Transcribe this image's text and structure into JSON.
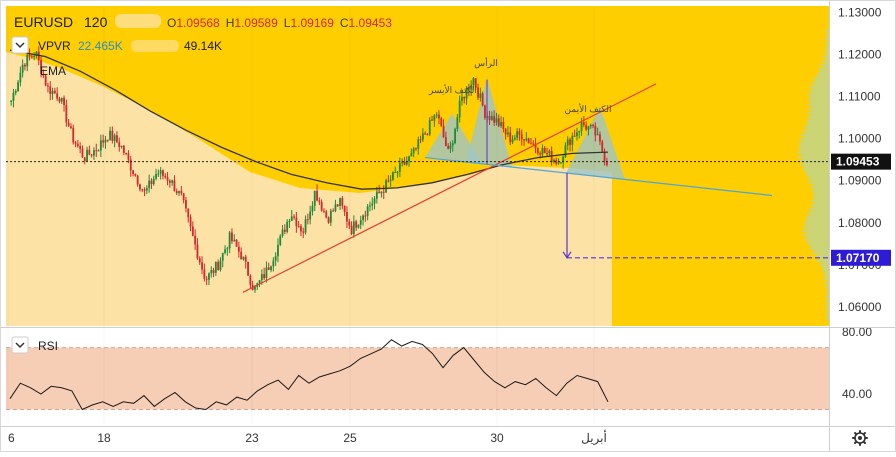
{
  "header": {
    "symbol": "EURUSD",
    "timeframe": "120",
    "ohlc": [
      {
        "label": "O",
        "value": "1.09568"
      },
      {
        "label": "H",
        "value": "1.09589"
      },
      {
        "label": "L",
        "value": "1.09169"
      },
      {
        "label": "C",
        "value": "1.09453"
      }
    ]
  },
  "indicators": {
    "vpvr_label": "VPVR",
    "vpvr_value_1": "22.465K",
    "vpvr_value_2": "49.14K",
    "ema_label": "EMA",
    "rsi_label": "RSI"
  },
  "annotations": {
    "left_shoulder": "الكتف الأيسر",
    "head": "الرأس",
    "right_shoulder": "الكتف الأيمن"
  },
  "price_axis": {
    "ticks": [
      "1.13000",
      "1.12000",
      "1.11000",
      "1.10000",
      "1.09000",
      "1.08000",
      "1.07000",
      "1.06000"
    ],
    "current_price_label": "1.09453",
    "target_price_label": "1.07170"
  },
  "rsi_axis": {
    "ticks": [
      "80.00",
      "40.00"
    ]
  },
  "time_axis": {
    "ticks": [
      "6",
      "18",
      "23",
      "25",
      "30",
      "أبريل"
    ]
  },
  "colors": {
    "up_candle": "#1f8a3a",
    "down_candle": "#d2282e",
    "chart_bg_upper": "#fece00",
    "chart_bg_lower": "#fde2a5",
    "ema_line": "#333333",
    "trendline": "#e83b2f",
    "neckline": "#4aa6d8",
    "target_arrow": "#5a32d8",
    "rsi_band": "#f6cdb5",
    "current_price_tag": "#111111",
    "target_price_tag": "#2d1bd6",
    "pattern_fill": "#9fc6c8",
    "volume_profile": "#b4d7ad"
  },
  "chart_data": [
    {
      "type": "candlestick",
      "title": "EURUSD",
      "timeframe": "120",
      "x_ticks": [
        "6",
        "18",
        "23",
        "25",
        "30",
        "أبريل"
      ],
      "ylim": [
        1.0555,
        1.1315
      ],
      "y_ticks": [
        1.13,
        1.12,
        1.11,
        1.1,
        1.09,
        1.08,
        1.07,
        1.06
      ],
      "series": [
        {
          "name": "EURUSD",
          "path": [
            1.109,
            1.118,
            1.1205,
            1.112,
            1.11,
            1.1005,
            1.0955,
            1.0975,
            1.101,
            1.0985,
            1.0925,
            1.087,
            1.092,
            1.0905,
            1.086,
            1.076,
            1.0665,
            1.07,
            1.0765,
            1.072,
            1.064,
            1.0685,
            1.075,
            1.0825,
            1.078,
            1.0875,
            1.081,
            1.085,
            1.0785,
            1.0825,
            1.086,
            1.0895,
            1.093,
            1.096,
            1.101,
            1.106,
            1.096,
            1.109,
            1.1145,
            1.106,
            1.104,
            1.1,
            1.101,
            1.0985,
            1.0965,
            1.0945,
            1.1,
            1.1035,
            1.1015,
            1.0945
          ]
        },
        {
          "name": "EMA",
          "path": [
            1.121,
            1.1195,
            1.116,
            1.1115,
            1.1065,
            1.102,
            1.098,
            1.0945,
            1.0915,
            1.0895,
            1.088,
            1.0883,
            1.0895,
            1.0915,
            1.0938,
            1.0955,
            1.0965,
            1.0968
          ]
        }
      ],
      "horizontal_lines": [
        {
          "label": "current",
          "value": 1.09453
        },
        {
          "label": "target",
          "value": 1.0717
        }
      ],
      "neckline": [
        1.0955,
        1.0865
      ],
      "trendline": [
        1.0635,
        1.113
      ],
      "pattern": "head-and-shoulders",
      "pattern_labels": [
        "الكتف الأيسر",
        "الرأس",
        "الكتف الأيمن"
      ]
    },
    {
      "type": "line",
      "title": "RSI",
      "ylim": [
        20,
        82
      ],
      "y_ticks": [
        80,
        40
      ],
      "band": [
        30,
        70
      ],
      "series": [
        {
          "name": "RSI",
          "values": [
            37,
            47,
            44,
            40,
            45,
            44,
            42,
            30,
            33,
            35,
            32,
            35,
            34,
            39,
            32,
            37,
            41,
            35,
            31,
            30,
            35,
            33,
            38,
            36,
            42,
            46,
            49,
            43,
            52,
            47,
            51,
            53,
            55,
            58,
            63,
            66,
            69,
            75,
            71,
            74,
            72,
            66,
            57,
            65,
            70,
            62,
            54,
            48,
            44,
            48,
            46,
            50,
            44,
            39,
            47,
            52,
            50,
            48,
            35
          ]
        }
      ]
    }
  ]
}
